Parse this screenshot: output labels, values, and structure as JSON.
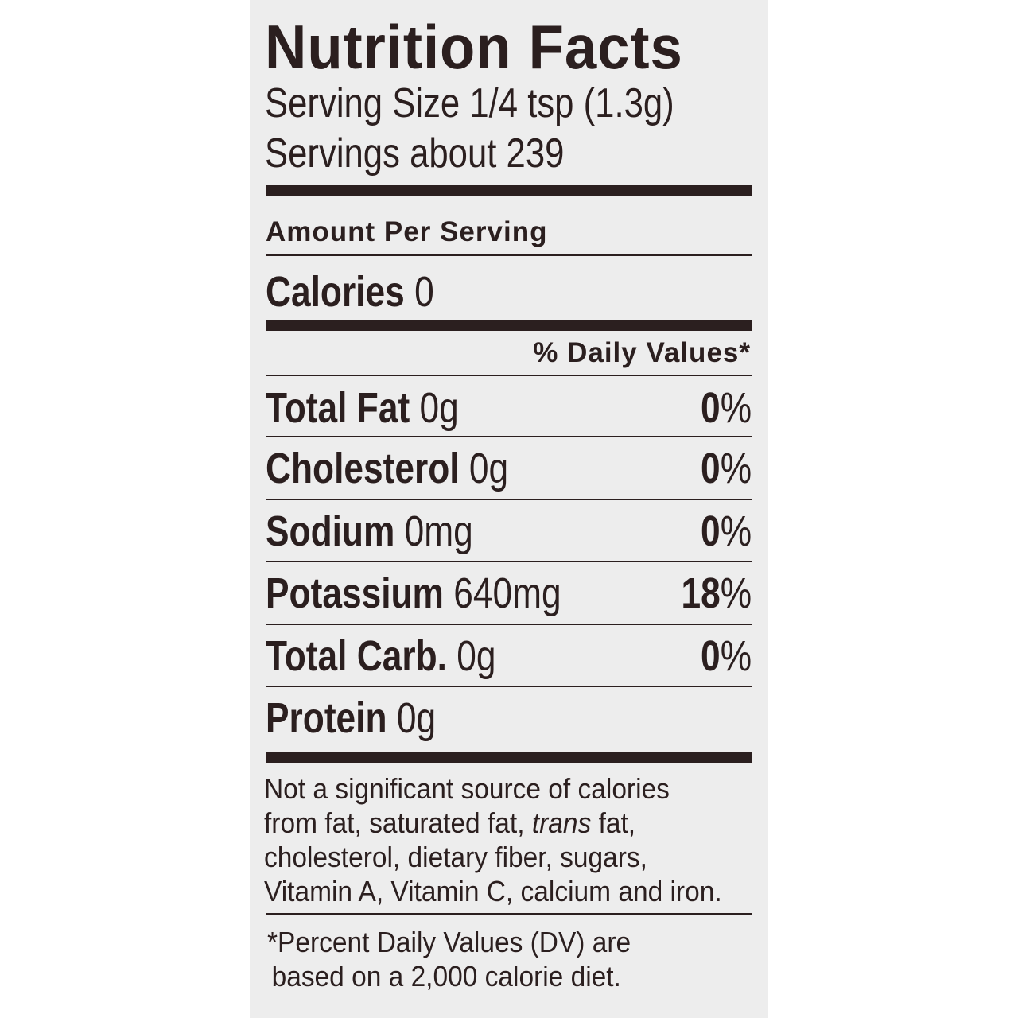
{
  "label": {
    "title": "Nutrition Facts",
    "serving_size": "Serving Size 1/4 tsp (1.3g)",
    "servings": "Servings about 239",
    "amount_per_serving": "Amount Per Serving",
    "calories_label": "Calories",
    "calories_value": "0",
    "daily_values_header": "% Daily Values*",
    "nutrients": [
      {
        "name": "Total Fat",
        "amount": "0g",
        "dv": "0",
        "unit": "%"
      },
      {
        "name": "Cholesterol",
        "amount": "0g",
        "dv": "0",
        "unit": "%"
      },
      {
        "name": "Sodium",
        "amount": "0mg",
        "dv": "0",
        "unit": "%"
      },
      {
        "name": "Potassium",
        "amount": "640mg",
        "dv": "18",
        "unit": "%"
      },
      {
        "name": "Total Carb.",
        "amount": "0g",
        "dv": "0",
        "unit": "%"
      },
      {
        "name": "Protein",
        "amount": "0g"
      }
    ],
    "footnote_lines": [
      "Not a significant source of calories",
      "from fat, saturated fat, ",
      "trans",
      " fat,",
      "cholesterol, dietary fiber, sugars,",
      "Vitamin A, Vitamin C, calcium and iron."
    ],
    "dv_note_lines": [
      "*Percent Daily Values (DV) are",
      "based on a 2,000 calorie diet."
    ]
  },
  "colors": {
    "ink": "#2b1f1f",
    "panel": "#ededed",
    "background": "#ffffff"
  }
}
